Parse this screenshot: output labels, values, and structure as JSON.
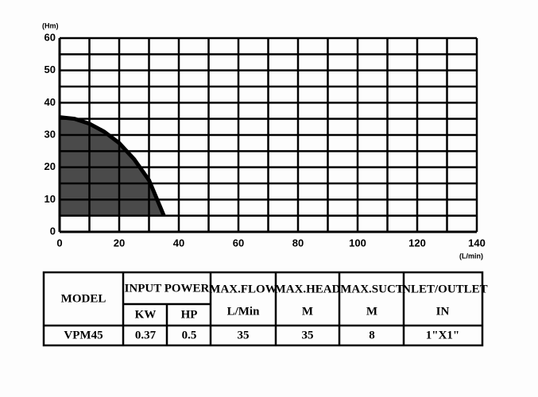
{
  "chart_data": {
    "type": "area",
    "x_label": "(L/min)",
    "y_label": "(Hm)",
    "x": [
      0,
      5,
      10,
      15,
      20,
      25,
      30,
      35
    ],
    "series": [
      {
        "color": "#4a4a4a",
        "values": [
          35.5,
          35,
          33.5,
          31,
          27.5,
          22.5,
          16,
          5
        ]
      }
    ],
    "area_base": 5,
    "xlim": [
      0,
      140
    ],
    "ylim": [
      0,
      60
    ],
    "xticks": [
      0,
      20,
      40,
      60,
      80,
      100,
      120,
      140
    ],
    "yticks": [
      0,
      10,
      20,
      30,
      40,
      50,
      60
    ],
    "xgrid": [
      10,
      20,
      30,
      40,
      50,
      60,
      70,
      80,
      90,
      100,
      110,
      120,
      130,
      140
    ],
    "ygrid": [
      5,
      10,
      15,
      20,
      25,
      30,
      35,
      40,
      45,
      50,
      55,
      60
    ]
  },
  "table": {
    "model_header": "MODEL",
    "power_header": "INPUT POWER",
    "kw_header": "KW",
    "hp_header": "HP",
    "columns": [
      {
        "title": "MAX.FLOW",
        "unit": "L/Min"
      },
      {
        "title": "MAX.HEAD",
        "unit": "M"
      },
      {
        "title": "MAX.SUCT",
        "unit": "M"
      },
      {
        "title": "INLET/OUTLET",
        "unit": "IN"
      }
    ],
    "rows": [
      [
        "VPM45",
        0.37,
        0.5,
        35,
        35,
        8,
        "1\"X1\""
      ]
    ]
  }
}
